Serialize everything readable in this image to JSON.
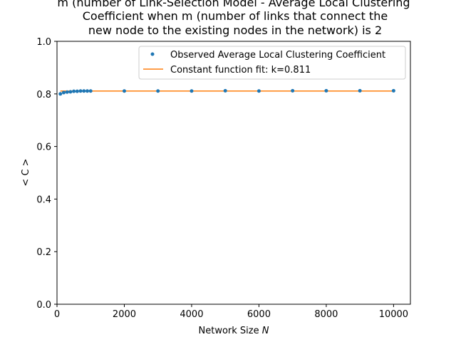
{
  "chart_data": {
    "type": "scatter",
    "title_lines": [
      "m (number of Link-Selection Model - Average Local Clustering",
      "Coefficient when m (number of links that connect the",
      "new node to the existing nodes in the network) is 2"
    ],
    "xlabel": "Network Size",
    "xlabel_var": "N",
    "ylabel": "< C >",
    "xlim": [
      0,
      10500
    ],
    "ylim": [
      0.0,
      1.0
    ],
    "x_ticks": [
      0,
      2000,
      4000,
      6000,
      8000,
      10000
    ],
    "x_tick_labels": [
      "0",
      "2000",
      "4000",
      "6000",
      "8000",
      "10000"
    ],
    "y_ticks": [
      0.0,
      0.2,
      0.4,
      0.6,
      0.8,
      1.0
    ],
    "y_tick_labels": [
      "0.0",
      "0.2",
      "0.4",
      "0.6",
      "0.8",
      "1.0"
    ],
    "grid": false,
    "legend_position": "top-right",
    "series": [
      {
        "name": "Observed Average Local Clustering Coefficient",
        "kind": "scatter",
        "color": "#1f77b4",
        "x": [
          100,
          200,
          300,
          400,
          500,
          600,
          700,
          800,
          900,
          1000,
          2000,
          3000,
          4000,
          5000,
          6000,
          7000,
          8000,
          9000,
          10000
        ],
        "y": [
          0.8,
          0.805,
          0.807,
          0.808,
          0.81,
          0.81,
          0.811,
          0.811,
          0.811,
          0.811,
          0.811,
          0.811,
          0.811,
          0.812,
          0.811,
          0.812,
          0.812,
          0.812,
          0.812
        ]
      },
      {
        "name": "Constant function fit: k=0.811",
        "kind": "line",
        "color": "#ff7f0e",
        "x": [
          100,
          10000
        ],
        "y": [
          0.811,
          0.811
        ]
      }
    ]
  }
}
